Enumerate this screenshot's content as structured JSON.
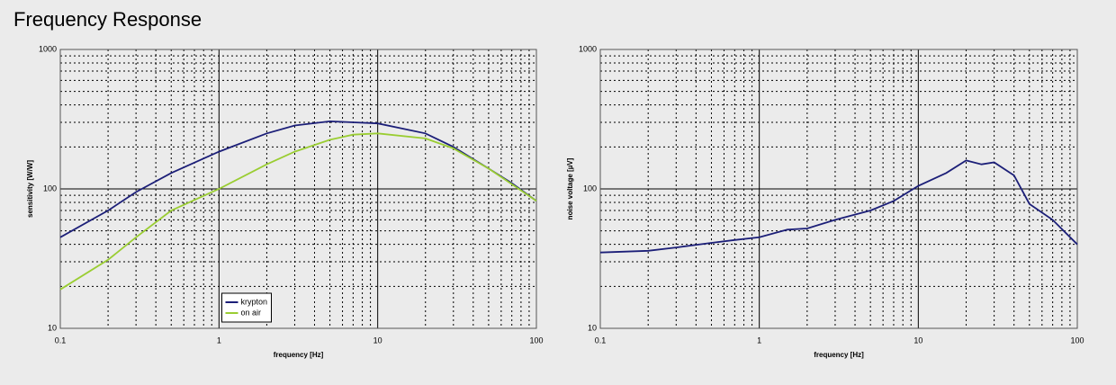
{
  "page_title": "Frequency Response",
  "chart_data": [
    {
      "type": "line",
      "xlabel": "frequency [Hz]",
      "ylabel": "sensitivity [W/W]",
      "xscale": "log",
      "yscale": "log",
      "xlim": [
        0.1,
        100
      ],
      "ylim": [
        10,
        1000
      ],
      "xticks": [
        0.1,
        1,
        10,
        100
      ],
      "yticks": [
        10,
        100,
        1000
      ],
      "grid": true,
      "minor_grid": true,
      "legend_loc": "lower center",
      "series": [
        {
          "name": "krypton",
          "color": "#1c1f78",
          "x": [
            0.1,
            0.2,
            0.3,
            0.5,
            1,
            2,
            3,
            5,
            7,
            10,
            20,
            30,
            50,
            70,
            100
          ],
          "values": [
            45,
            70,
            95,
            130,
            185,
            250,
            285,
            305,
            300,
            295,
            250,
            200,
            140,
            110,
            82
          ]
        },
        {
          "name": "on air",
          "color": "#9acd32",
          "x": [
            0.1,
            0.2,
            0.3,
            0.5,
            1,
            2,
            3,
            5,
            7,
            10,
            20,
            30,
            50,
            70,
            100
          ],
          "values": [
            19,
            31,
            45,
            70,
            100,
            150,
            185,
            225,
            245,
            250,
            230,
            195,
            140,
            108,
            82
          ]
        }
      ]
    },
    {
      "type": "line",
      "xlabel": "frequency [Hz]",
      "ylabel": "noise voltage [µV]",
      "xscale": "log",
      "yscale": "log",
      "xlim": [
        0.1,
        100
      ],
      "ylim": [
        10,
        1000
      ],
      "xticks": [
        0.1,
        1,
        10,
        100
      ],
      "yticks": [
        10,
        100,
        1000
      ],
      "grid": true,
      "minor_grid": true,
      "series": [
        {
          "color": "#1c1f78",
          "x": [
            0.1,
            0.2,
            0.3,
            0.5,
            0.7,
            1,
            1.5,
            2,
            3,
            5,
            7,
            10,
            15,
            20,
            25,
            30,
            40,
            50,
            70,
            100
          ],
          "values": [
            35,
            36,
            38,
            41,
            43,
            45,
            51,
            52,
            60,
            70,
            82,
            105,
            130,
            160,
            150,
            155,
            125,
            78,
            60,
            40
          ]
        }
      ]
    }
  ]
}
